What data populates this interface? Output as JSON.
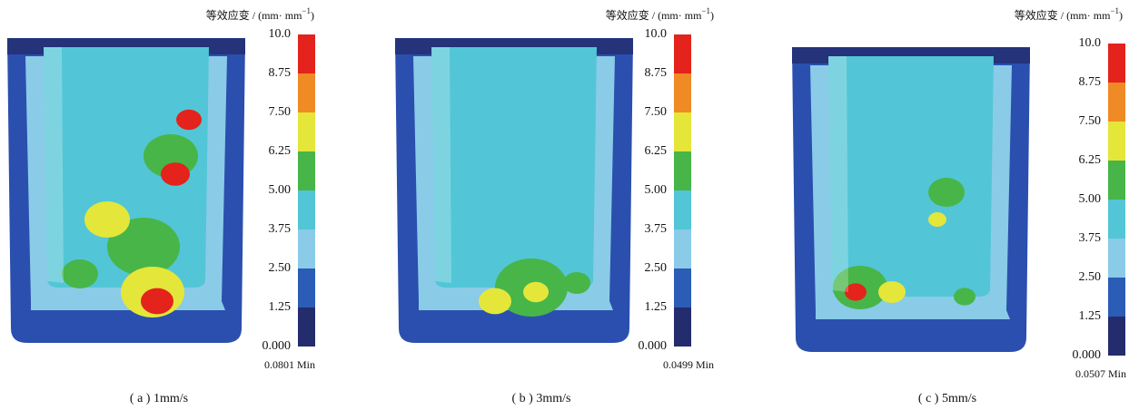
{
  "panels": [
    {
      "unit": {
        "text": "等效应变 / (mm· mm",
        "sup": "−1",
        "close": ")"
      },
      "ticks": [
        "10.0",
        "8.75",
        "7.50",
        "6.25",
        "5.00",
        "3.75",
        "2.50",
        "1.25",
        "0.000"
      ],
      "min": "0.0801 Min",
      "caption": "( a ) 1mm/s"
    },
    {
      "unit": {
        "text": "等效应变 / (mm· mm",
        "sup": "−1",
        "close": ")"
      },
      "ticks": [
        "10.0",
        "8.75",
        "7.50",
        "6.25",
        "5.00",
        "3.75",
        "2.50",
        "1.25",
        "0.000"
      ],
      "min": "0.0499 Min",
      "caption": "( b ) 3mm/s"
    },
    {
      "unit": {
        "text": "等效应变 / (mm· mm",
        "sup": "−1",
        "close": ")"
      },
      "ticks": [
        "10.0",
        "8.75",
        "7.50",
        "6.25",
        "5.00",
        "3.75",
        "2.50",
        "1.25",
        "0.000"
      ],
      "min": "0.0507 Min",
      "caption": "( c ) 5mm/s"
    }
  ]
}
